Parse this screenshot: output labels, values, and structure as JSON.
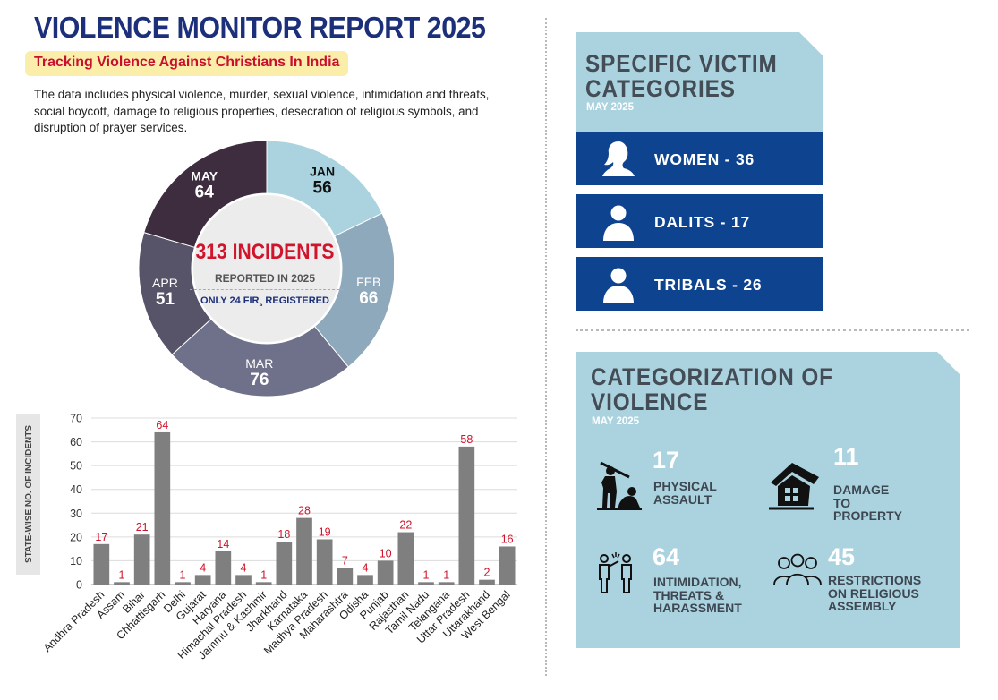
{
  "header": {
    "title": "VIOLENCE MONITOR REPORT 2025",
    "subtitle": "Tracking Violence Against Christians In India",
    "description": "The data includes physical violence, murder, sexual violence, intimidation and threats, social boycott, damage to religious properties, desecration of religious symbols, and disruption of prayer services."
  },
  "donut": {
    "center_title": "313 INCIDENTS",
    "center_sub": "REPORTED IN 2025",
    "fir_prefix": "ONLY 24 FIR",
    "fir_subscript": "s",
    "fir_suffix": " REGISTERED"
  },
  "victims": {
    "title_line1": "SPECIFIC VICTIM",
    "title_line2": "CATEGORIES",
    "month": "MAY 2025",
    "items": [
      {
        "label": "WOMEN - 36",
        "icon": "woman-icon"
      },
      {
        "label": "DALITS - 17",
        "icon": "person-icon"
      },
      {
        "label": "TRIBALS - 26",
        "icon": "person-icon"
      }
    ]
  },
  "violence": {
    "title_line1": "CATEGORIZATION OF",
    "title_line2": "VIOLENCE",
    "month": "MAY 2025",
    "items": [
      {
        "value": "17",
        "label": "PHYSICAL\nASSAULT",
        "icon": "physical-assault-icon"
      },
      {
        "value": "11",
        "label": "DAMAGE TO\nPROPERTY",
        "icon": "damaged-house-icon"
      },
      {
        "value": "64",
        "label": "INTIMIDATION,\nTHREATS &\nHARASSMENT",
        "icon": "intimidation-icon"
      },
      {
        "value": "45",
        "label": "RESTRICTIONS\nON RELIGIOUS\nASSEMBLY",
        "icon": "group-icon"
      }
    ]
  },
  "colors": {
    "navy": "#1c2f7a",
    "red": "#c8102e",
    "panel": "#abd3df",
    "victim_bar": "#0e4390",
    "bar": "#7f7f7f"
  },
  "chart_data": [
    {
      "type": "pie",
      "categories": [
        "JAN",
        "FEB",
        "MAR",
        "APR",
        "MAY"
      ],
      "values": [
        56,
        66,
        76,
        51,
        64
      ],
      "colors": [
        "#abd3df",
        "#8ea9bb",
        "#6f7089",
        "#575369",
        "#3d2d3f"
      ],
      "title": "313 INCIDENTS"
    },
    {
      "type": "bar",
      "categories": [
        "Andhra Pradesh",
        "Assam",
        "Bihar",
        "Chhattisgarh",
        "Delhi",
        "Gujarat",
        "Haryana",
        "Himachal Pradesh",
        "Jammu & Kashmir",
        "Jharkhand",
        "Karnataka",
        "Madhya Pradesh",
        "Maharashtra",
        "Odisha",
        "Punjab",
        "Rajasthan",
        "Tamil Nadu",
        "Telangana",
        "Uttar Pradesh",
        "Uttarakhand",
        "West Bengal"
      ],
      "values": [
        17,
        1,
        21,
        64,
        1,
        4,
        14,
        4,
        1,
        18,
        28,
        19,
        7,
        4,
        10,
        22,
        1,
        1,
        58,
        2,
        16
      ],
      "ylabel": "STATE-WISE NO. OF INCIDENTS",
      "ylim": [
        0,
        70
      ],
      "yticks": [
        0,
        10,
        20,
        30,
        40,
        50,
        60,
        70
      ],
      "grid": true
    }
  ]
}
